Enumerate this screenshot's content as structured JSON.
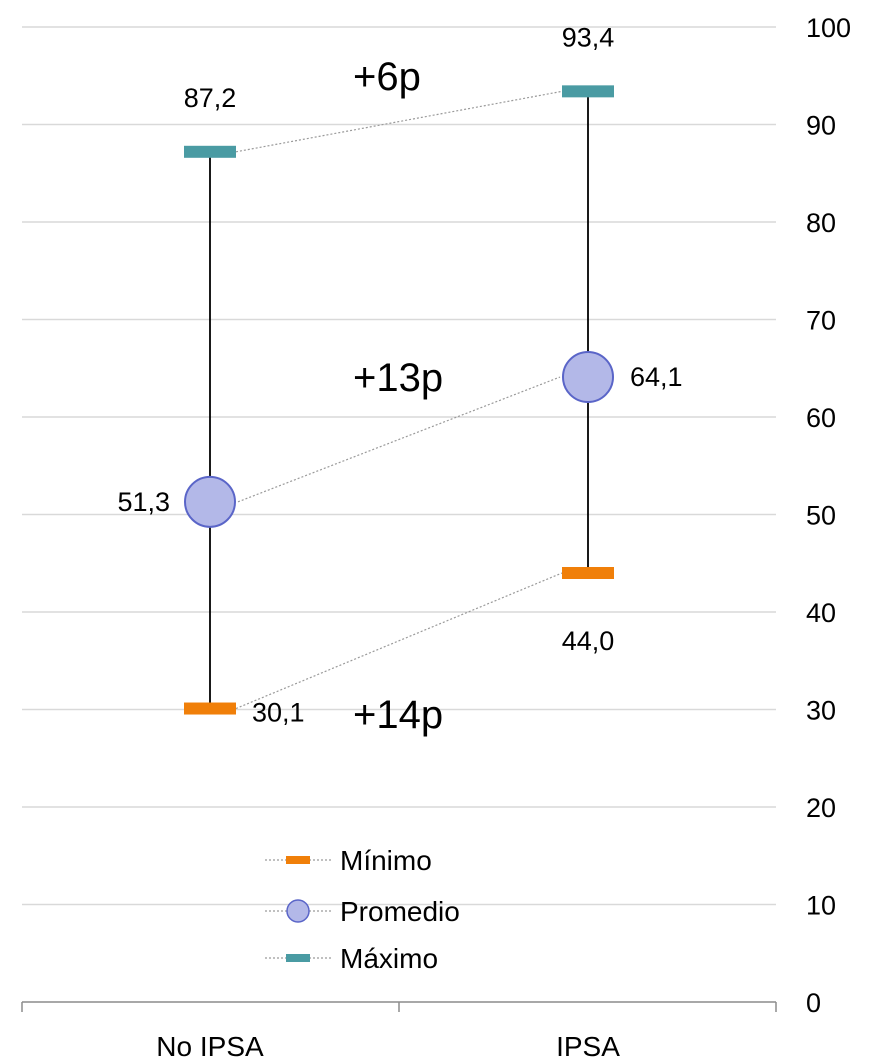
{
  "chart_data": {
    "type": "scatter",
    "categories": [
      "No IPSA",
      "IPSA"
    ],
    "series": [
      {
        "name": "Mínimo",
        "values": [
          30.1,
          44.0
        ],
        "labels": [
          "30,1",
          "44,0"
        ],
        "color": "#F07F09",
        "marker": "dash"
      },
      {
        "name": "Promedio",
        "values": [
          51.3,
          64.1
        ],
        "labels": [
          "51,3",
          "64,1"
        ],
        "color": "#B3B8E8",
        "stroke": "#5A65C8",
        "marker": "circle"
      },
      {
        "name": "Máximo",
        "values": [
          87.2,
          93.4
        ],
        "labels": [
          "87,2",
          "93,4"
        ],
        "color": "#4A9BA3",
        "marker": "dash"
      }
    ],
    "annotations": [
      {
        "text": "+6p",
        "series": "Máximo"
      },
      {
        "text": "+13p",
        "series": "Promedio"
      },
      {
        "text": "+14p",
        "series": "Mínimo"
      }
    ],
    "ylim": [
      0,
      100
    ],
    "yticks": [
      "0",
      "10",
      "20",
      "30",
      "40",
      "50",
      "60",
      "70",
      "80",
      "90",
      "100"
    ],
    "yaxis_position": "right",
    "grid": true,
    "legend": "bottom-center",
    "title": "",
    "xlabel": "",
    "ylabel": ""
  }
}
